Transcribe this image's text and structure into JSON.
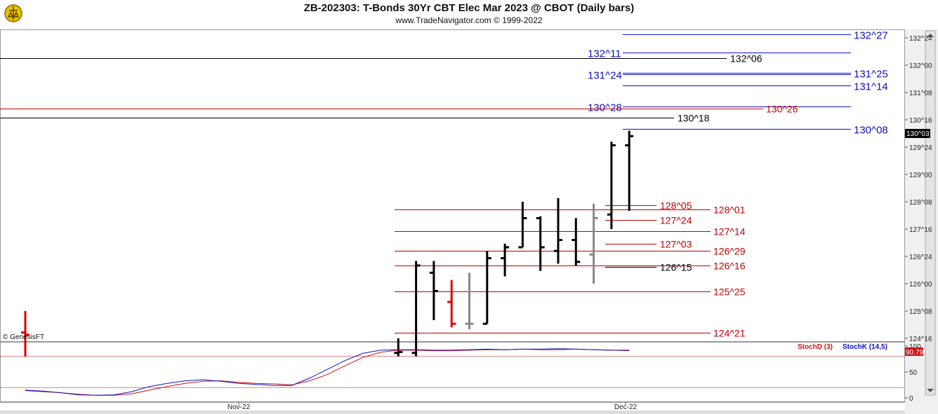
{
  "header": {
    "title": "ZB-202303:  T-Bonds 30Yr CBT Elec Mar 2023 @ CBOT  (Daily bars)",
    "subtitle": "www.TradeNavigator.com © 1999-2022",
    "watermark": "© GenesisFT"
  },
  "chart_data": [
    {
      "type": "ohlc-bar",
      "panel": "price",
      "y_axis_ticks": [
        "132^24",
        "132^00",
        "131^08",
        "130^16",
        "129^24",
        "129^00",
        "128^08",
        "127^16",
        "126^24",
        "126^00",
        "125^08",
        "124^16"
      ],
      "ylim_32nds": [
        124.5,
        132.75
      ],
      "last_price_label": "130^03",
      "bars": [
        {
          "day": 0,
          "o": 124.66,
          "h": 125.25,
          "l": 124.0,
          "c": 124.6,
          "color": "red"
        },
        {
          "day": 21,
          "o": 124.1,
          "h": 124.5,
          "l": 124.0,
          "c": 124.125,
          "color": "black"
        },
        {
          "day": 22,
          "o": 124.1,
          "h": 126.625,
          "l": 124.0,
          "c": 126.5,
          "color": "black"
        },
        {
          "day": 23,
          "o": 126.3,
          "h": 126.625,
          "l": 125.0,
          "c": 125.8,
          "color": "black"
        },
        {
          "day": 24,
          "o": 125.5,
          "h": 126.1,
          "l": 124.8,
          "c": 124.9,
          "color": "red"
        },
        {
          "day": 25,
          "o": 124.9,
          "h": 126.3,
          "l": 124.75,
          "c": 124.9,
          "color": "gray"
        },
        {
          "day": 26,
          "o": 124.9,
          "h": 126.9,
          "l": 124.9,
          "c": 126.7,
          "color": "black"
        },
        {
          "day": 27,
          "o": 126.7,
          "h": 127.1,
          "l": 126.2,
          "c": 127.0,
          "color": "black"
        },
        {
          "day": 28,
          "o": 127.0,
          "h": 128.25,
          "l": 127.0,
          "c": 127.8,
          "color": "black"
        },
        {
          "day": 29,
          "o": 127.8,
          "h": 127.85,
          "l": 126.35,
          "c": 127.0,
          "color": "black"
        },
        {
          "day": 30,
          "o": 126.9,
          "h": 128.35,
          "l": 126.55,
          "c": 127.2,
          "color": "black"
        },
        {
          "day": 31,
          "o": 127.2,
          "h": 127.8,
          "l": 126.5,
          "c": 126.6,
          "color": "black"
        },
        {
          "day": 32,
          "o": 126.8,
          "h": 128.2,
          "l": 126.0,
          "c": 127.8,
          "color": "gray"
        },
        {
          "day": 33,
          "o": 127.9,
          "h": 129.9,
          "l": 127.5,
          "c": 129.8,
          "color": "black"
        },
        {
          "day": 34,
          "o": 129.8,
          "h": 130.2,
          "l": 128.0,
          "c": 130.05,
          "color": "black"
        }
      ],
      "levels": [
        {
          "label": "132^27",
          "value": 132.84,
          "color": "#1010c0",
          "kind": "full"
        },
        {
          "label": "132^11",
          "value": 132.34,
          "color": "#1010c0",
          "kind": "full"
        },
        {
          "label": "132^06",
          "value": 132.19,
          "color": "#000000",
          "kind": "full"
        },
        {
          "label": "131^25",
          "value": 131.78,
          "color": "#1010c0",
          "kind": "full"
        },
        {
          "label": "131^24",
          "value": 131.75,
          "color": "#1010c0",
          "kind": "full"
        },
        {
          "label": "131^14",
          "value": 131.44,
          "color": "#1010c0",
          "kind": "full"
        },
        {
          "label": "130^28",
          "value": 130.875,
          "color": "#1010c0",
          "kind": "full"
        },
        {
          "label": "130^26",
          "value": 130.81,
          "color": "#c00000",
          "kind": "full"
        },
        {
          "label": "130^18",
          "value": 130.56,
          "color": "#000000",
          "kind": "full"
        },
        {
          "label": "130^08",
          "value": 130.25,
          "color": "#1010c0",
          "kind": "full"
        },
        {
          "label": "128^05",
          "value": 128.16,
          "color": "#c00000",
          "kind": "short"
        },
        {
          "label": "128^01",
          "value": 128.03,
          "color": "#c00000",
          "kind": "full"
        },
        {
          "label": "127^24",
          "value": 127.75,
          "color": "#c00000",
          "kind": "short"
        },
        {
          "label": "127^14",
          "value": 127.44,
          "color": "#c00000",
          "kind": "full"
        },
        {
          "label": "127^03",
          "value": 127.09,
          "color": "#c00000",
          "kind": "short"
        },
        {
          "label": "126^29",
          "value": 126.91,
          "color": "#c00000",
          "kind": "full"
        },
        {
          "label": "126^15",
          "value": 126.47,
          "color": "#000000",
          "kind": "short"
        },
        {
          "label": "126^16",
          "value": 126.5,
          "color": "#c00000",
          "kind": "full"
        },
        {
          "label": "125^25",
          "value": 125.78,
          "color": "#c00000",
          "kind": "full"
        },
        {
          "label": "124^21",
          "value": 124.66,
          "color": "#c00000",
          "kind": "full"
        }
      ]
    },
    {
      "type": "line",
      "panel": "stochastic",
      "legend": [
        {
          "name": "StochD (3)",
          "color": "#d01010"
        },
        {
          "name": "StochK (14,5)",
          "color": "#1010c0"
        }
      ],
      "y_axis_ticks": [
        "100",
        "50",
        "0"
      ],
      "ylim": [
        0,
        100
      ],
      "last_value_label": "90.79",
      "reference_lines": [
        80,
        20
      ],
      "x_labels": [
        "Nov-22",
        "Dec-22"
      ],
      "series": [
        {
          "name": "StochD (3)",
          "values": [
            14,
            12,
            10,
            7,
            5,
            5,
            8,
            15,
            22,
            28,
            32,
            33,
            30,
            28,
            27,
            25,
            33,
            45,
            62,
            78,
            88,
            92,
            92,
            91,
            91,
            92,
            93,
            93,
            94,
            93,
            93,
            94,
            93,
            92,
            91
          ]
        },
        {
          "name": "StochK (14,5)",
          "values": [
            15,
            13,
            10,
            6,
            5,
            6,
            12,
            22,
            28,
            33,
            35,
            32,
            28,
            26,
            24,
            24,
            38,
            55,
            72,
            86,
            92,
            93,
            93,
            92,
            92,
            93,
            94,
            93,
            94,
            94,
            95,
            94,
            93,
            92,
            92
          ]
        }
      ]
    }
  ]
}
